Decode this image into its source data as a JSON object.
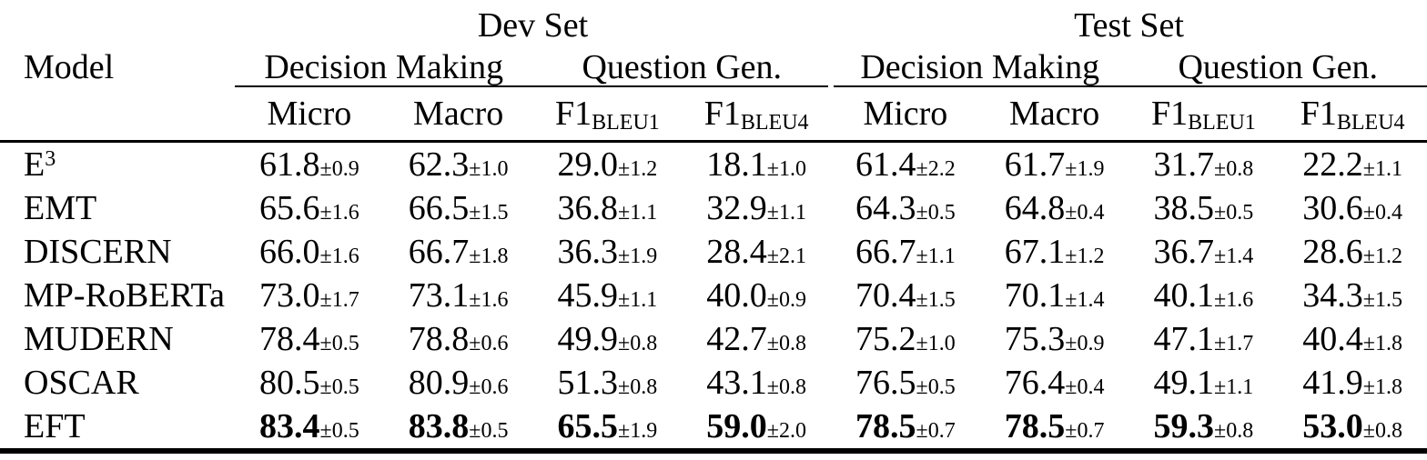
{
  "table": {
    "set_headers": [
      "Dev Set",
      "Test Set"
    ],
    "model_header": "Model",
    "task_headers": [
      "Decision Making",
      "Question Gen.",
      "Decision Making",
      "Question Gen."
    ],
    "metric_headers": [
      {
        "base": "Micro",
        "sub": ""
      },
      {
        "base": "Macro",
        "sub": ""
      },
      {
        "base": "F1",
        "sub": "BLEU1"
      },
      {
        "base": "F1",
        "sub": "BLEU4"
      },
      {
        "base": "Micro",
        "sub": ""
      },
      {
        "base": "Macro",
        "sub": ""
      },
      {
        "base": "F1",
        "sub": "BLEU1"
      },
      {
        "base": "F1",
        "sub": "BLEU4"
      }
    ],
    "rows": [
      {
        "model": "E",
        "model_sup": "3",
        "bold": false,
        "cells": [
          {
            "v": "61.8",
            "e": "±0.9"
          },
          {
            "v": "62.3",
            "e": "±1.0"
          },
          {
            "v": "29.0",
            "e": "±1.2"
          },
          {
            "v": "18.1",
            "e": "±1.0"
          },
          {
            "v": "61.4",
            "e": "±2.2"
          },
          {
            "v": "61.7",
            "e": "±1.9"
          },
          {
            "v": "31.7",
            "e": "±0.8"
          },
          {
            "v": "22.2",
            "e": "±1.1"
          }
        ]
      },
      {
        "model": "EMT",
        "model_sup": "",
        "bold": false,
        "cells": [
          {
            "v": "65.6",
            "e": "±1.6"
          },
          {
            "v": "66.5",
            "e": "±1.5"
          },
          {
            "v": "36.8",
            "e": "±1.1"
          },
          {
            "v": "32.9",
            "e": "±1.1"
          },
          {
            "v": "64.3",
            "e": "±0.5"
          },
          {
            "v": "64.8",
            "e": "±0.4"
          },
          {
            "v": "38.5",
            "e": "±0.5"
          },
          {
            "v": "30.6",
            "e": "±0.4"
          }
        ]
      },
      {
        "model": "DISCERN",
        "model_sup": "",
        "bold": false,
        "cells": [
          {
            "v": "66.0",
            "e": "±1.6"
          },
          {
            "v": "66.7",
            "e": "±1.8"
          },
          {
            "v": "36.3",
            "e": "±1.9"
          },
          {
            "v": "28.4",
            "e": "±2.1"
          },
          {
            "v": "66.7",
            "e": "±1.1"
          },
          {
            "v": "67.1",
            "e": "±1.2"
          },
          {
            "v": "36.7",
            "e": "±1.4"
          },
          {
            "v": "28.6",
            "e": "±1.2"
          }
        ]
      },
      {
        "model": "MP-RoBERTa",
        "model_sup": "",
        "bold": false,
        "cells": [
          {
            "v": "73.0",
            "e": "±1.7"
          },
          {
            "v": "73.1",
            "e": "±1.6"
          },
          {
            "v": "45.9",
            "e": "±1.1"
          },
          {
            "v": "40.0",
            "e": "±0.9"
          },
          {
            "v": "70.4",
            "e": "±1.5"
          },
          {
            "v": "70.1",
            "e": "±1.4"
          },
          {
            "v": "40.1",
            "e": "±1.6"
          },
          {
            "v": "34.3",
            "e": "±1.5"
          }
        ]
      },
      {
        "model": "MUDERN",
        "model_sup": "",
        "bold": false,
        "cells": [
          {
            "v": "78.4",
            "e": "±0.5"
          },
          {
            "v": "78.8",
            "e": "±0.6"
          },
          {
            "v": "49.9",
            "e": "±0.8"
          },
          {
            "v": "42.7",
            "e": "±0.8"
          },
          {
            "v": "75.2",
            "e": "±1.0"
          },
          {
            "v": "75.3",
            "e": "±0.9"
          },
          {
            "v": "47.1",
            "e": "±1.7"
          },
          {
            "v": "40.4",
            "e": "±1.8"
          }
        ]
      },
      {
        "model": "OSCAR",
        "model_sup": "",
        "bold": false,
        "cells": [
          {
            "v": "80.5",
            "e": "±0.5"
          },
          {
            "v": "80.9",
            "e": "±0.6"
          },
          {
            "v": "51.3",
            "e": "±0.8"
          },
          {
            "v": "43.1",
            "e": "±0.8"
          },
          {
            "v": "76.5",
            "e": "±0.5"
          },
          {
            "v": "76.4",
            "e": "±0.4"
          },
          {
            "v": "49.1",
            "e": "±1.1"
          },
          {
            "v": "41.9",
            "e": "±1.8"
          }
        ]
      },
      {
        "model": "EFT",
        "model_sup": "",
        "bold": true,
        "cells": [
          {
            "v": "83.4",
            "e": "±0.5"
          },
          {
            "v": "83.8",
            "e": "±0.5"
          },
          {
            "v": "65.5",
            "e": "±1.9"
          },
          {
            "v": "59.0",
            "e": "±2.0"
          },
          {
            "v": "78.5",
            "e": "±0.7"
          },
          {
            "v": "78.5",
            "e": "±0.7"
          },
          {
            "v": "59.3",
            "e": "±0.8"
          },
          {
            "v": "53.0",
            "e": "±0.8"
          }
        ]
      }
    ]
  },
  "colors": {
    "text": "#000000",
    "background": "#ffffff",
    "rule": "#000000"
  }
}
